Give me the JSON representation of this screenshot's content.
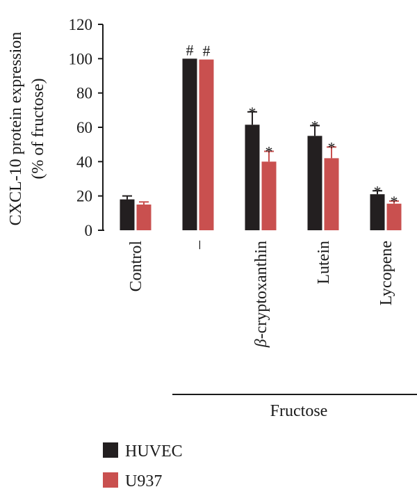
{
  "chart_data": {
    "type": "bar",
    "ylabel_lines": [
      "CXCL-10 protein expression",
      "(% of fructose)"
    ],
    "ylim": [
      0,
      120
    ],
    "yticks": [
      0,
      20,
      40,
      60,
      80,
      100,
      120
    ],
    "categories": [
      "Control",
      "–",
      "β-cryptoxanthin",
      "Lutein",
      "Lycopene"
    ],
    "category_parts": [
      {
        "italic": "",
        "rest": "Control"
      },
      {
        "italic": "",
        "rest": "–"
      },
      {
        "italic": "β",
        "rest": "-cryptoxanthin"
      },
      {
        "italic": "",
        "rest": "Lutein"
      },
      {
        "italic": "",
        "rest": "Lycopene"
      }
    ],
    "group_label": "Fructose",
    "group_categories": [
      1,
      4
    ],
    "legend_position": "bottom-left",
    "series": [
      {
        "name": "HUVEC",
        "color": "#231f20",
        "values": [
          18,
          100,
          61.5,
          55,
          21
        ],
        "errors": [
          2,
          0,
          7.5,
          6,
          2
        ],
        "annotations": [
          "",
          "#",
          "*",
          "*",
          "*"
        ]
      },
      {
        "name": "U937",
        "color": "#c9504f",
        "values": [
          15,
          99.5,
          40,
          42,
          15.5
        ],
        "errors": [
          1.5,
          0,
          6,
          6.5,
          1.5
        ],
        "annotations": [
          "",
          "#",
          "*",
          "*",
          "*"
        ]
      }
    ]
  }
}
